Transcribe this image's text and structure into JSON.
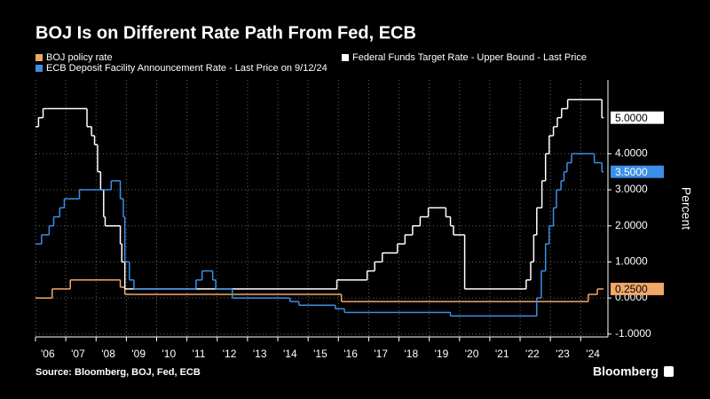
{
  "chart_data": {
    "type": "line",
    "title": "BOJ Is on Different Rate Path From Fed, ECB",
    "y_label": "Percent",
    "source": "Source: Bloomberg, BOJ, Fed, ECB",
    "brand": "Bloomberg",
    "xlim": [
      2006,
      2024.9
    ],
    "ylim": [
      -1.08,
      6.05
    ],
    "xticks": [
      {
        "value": 2006,
        "label": "'06"
      },
      {
        "value": 2007,
        "label": "'07"
      },
      {
        "value": 2008,
        "label": "'08"
      },
      {
        "value": 2009,
        "label": "'09"
      },
      {
        "value": 2010,
        "label": "'10"
      },
      {
        "value": 2011,
        "label": "'11"
      },
      {
        "value": 2012,
        "label": "'12"
      },
      {
        "value": 2013,
        "label": "'13"
      },
      {
        "value": 2014,
        "label": "'14"
      },
      {
        "value": 2015,
        "label": "'15"
      },
      {
        "value": 2016,
        "label": "'16"
      },
      {
        "value": 2017,
        "label": "'17"
      },
      {
        "value": 2018,
        "label": "'18"
      },
      {
        "value": 2019,
        "label": "'19"
      },
      {
        "value": 2020,
        "label": "'20"
      },
      {
        "value": 2021,
        "label": "'21"
      },
      {
        "value": 2022,
        "label": "'22"
      },
      {
        "value": 2023,
        "label": "'23"
      },
      {
        "value": 2024,
        "label": "'24"
      }
    ],
    "yticks": [
      {
        "value": -1,
        "label": "-1.0000"
      },
      {
        "value": 0,
        "label": "0.0000"
      },
      {
        "value": 1,
        "label": "1.0000"
      },
      {
        "value": 2,
        "label": "2.0000"
      },
      {
        "value": 3,
        "label": "3.0000"
      },
      {
        "value": 4,
        "label": "4.0000"
      }
    ],
    "grid": true,
    "series": [
      {
        "name": "BOJ policy rate",
        "color": "#f0a868",
        "last_price": {
          "value": 0.25,
          "label": "0.2500"
        },
        "x": [
          2006,
          2006.55,
          2007.15,
          2008.8,
          2008.95,
          2016.1,
          2024.25,
          2024.55,
          2024.7
        ],
        "values": [
          0,
          0.25,
          0.5,
          0.3,
          0.1,
          -0.1,
          0.1,
          0.25,
          0.25
        ]
      },
      {
        "name": "Federal Funds Target Rate - Upper Bound - Last Price",
        "color": "#ffffff",
        "last_price": {
          "value": 5,
          "label": "5.0000"
        },
        "x": [
          2006,
          2006.1,
          2006.25,
          2006.4,
          2007.7,
          2007.85,
          2007.95,
          2008.05,
          2008.15,
          2008.25,
          2008.3,
          2008.8,
          2008.85,
          2008.95,
          2015.95,
          2016.95,
          2017.2,
          2017.45,
          2017.95,
          2018.2,
          2018.45,
          2018.7,
          2018.97,
          2019.55,
          2019.7,
          2019.8,
          2020.17,
          2022.2,
          2022.35,
          2022.45,
          2022.55,
          2022.72,
          2022.84,
          2022.96,
          2023.1,
          2023.23,
          2023.37,
          2023.57,
          2024.7
        ],
        "values": [
          4.75,
          5,
          5.25,
          5.25,
          4.75,
          4.5,
          4.25,
          3.5,
          3,
          2.25,
          2,
          1.5,
          1,
          0.25,
          0.5,
          0.75,
          1,
          1.25,
          1.5,
          1.75,
          2,
          2.25,
          2.5,
          2.25,
          2,
          1.75,
          0.25,
          0.5,
          1,
          1.75,
          2.5,
          3.25,
          4,
          4.5,
          4.75,
          5,
          5.25,
          5.5,
          5
        ]
      },
      {
        "name": "ECB Deposit Facility Announcement Rate - Last Price on 9/12/24",
        "color": "#3b8fe6",
        "last_price": {
          "value": 3.5,
          "label": "3.5000"
        },
        "x": [
          2006,
          2006.2,
          2006.45,
          2006.6,
          2006.8,
          2006.95,
          2007.45,
          2008.5,
          2008.8,
          2008.9,
          2008.95,
          2009.1,
          2009.25,
          2011.3,
          2011.5,
          2011.85,
          2011.95,
          2012.5,
          2014.4,
          2014.7,
          2015.9,
          2016.2,
          2019.7,
          2022.55,
          2022.7,
          2022.84,
          2022.96,
          2023.1,
          2023.2,
          2023.35,
          2023.45,
          2023.55,
          2023.7,
          2024.45,
          2024.7
        ],
        "values": [
          1.5,
          1.75,
          2,
          2.25,
          2.5,
          2.75,
          3,
          3.25,
          2.75,
          2.25,
          1,
          0.5,
          0.25,
          0.5,
          0.75,
          0.5,
          0.25,
          0,
          -0.1,
          -0.2,
          -0.3,
          -0.4,
          -0.5,
          0,
          0.75,
          1.5,
          2,
          2.5,
          3,
          3.25,
          3.5,
          3.75,
          4,
          3.75,
          3.5
        ]
      }
    ]
  }
}
